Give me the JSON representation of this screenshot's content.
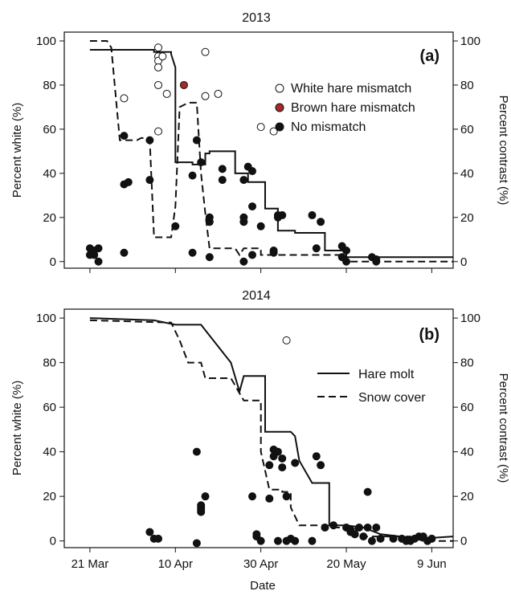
{
  "figure": {
    "xlabel": "Date"
  },
  "x_ticks": [
    {
      "label": "21 Mar",
      "day": 0
    },
    {
      "label": "10 Apr",
      "day": 20
    },
    {
      "label": "30 Apr",
      "day": 40
    },
    {
      "label": "20 May",
      "day": 60
    },
    {
      "label": "9 Jun",
      "day": 80
    }
  ],
  "x_domain_days": [
    -6,
    85
  ],
  "x_date_origin": "21 Mar",
  "colors": {
    "line": "#111111",
    "brown_mismatch": "#a52a2a",
    "white_marker_fill": "#ffffff"
  },
  "chart_data": [
    {
      "type": "line",
      "title": "2013",
      "panel_label": "(a)",
      "ylabel_left": "Percent white (%)",
      "ylabel_right": "Percent contrast (%)",
      "ylim": [
        -3,
        104
      ],
      "y_ticks": [
        0,
        20,
        40,
        60,
        80,
        100
      ],
      "legend": {
        "position": "top-right",
        "entries": [
          {
            "label": "White hare mismatch",
            "marker": "open-circle"
          },
          {
            "label": "Brown hare mismatch",
            "marker": "brown-circle"
          },
          {
            "label": "No mismatch",
            "marker": "filled-circle"
          }
        ]
      },
      "series": [
        {
          "style": "solid",
          "points": [
            [
              0,
              96
            ],
            [
              15,
              96
            ],
            [
              15,
              95
            ],
            [
              19,
              95
            ],
            [
              19,
              94
            ],
            [
              20,
              88
            ],
            [
              20,
              45
            ],
            [
              24,
              45
            ],
            [
              24,
              44
            ],
            [
              27,
              44
            ],
            [
              27,
              49
            ],
            [
              28,
              49
            ],
            [
              28,
              50
            ],
            [
              34,
              50
            ],
            [
              34,
              40
            ],
            [
              37,
              40
            ],
            [
              37,
              36
            ],
            [
              41,
              36
            ],
            [
              41,
              24
            ],
            [
              44,
              24
            ],
            [
              44,
              14
            ],
            [
              48,
              14
            ],
            [
              48,
              13
            ],
            [
              55,
              13
            ],
            [
              55,
              5
            ],
            [
              60,
              5
            ],
            [
              60,
              2
            ],
            [
              85,
              2
            ]
          ]
        },
        {
          "style": "dashed",
          "points": [
            [
              0,
              100
            ],
            [
              4,
              100
            ],
            [
              5,
              97
            ],
            [
              7,
              55
            ],
            [
              11,
              55
            ],
            [
              12,
              56
            ],
            [
              13,
              56
            ],
            [
              14,
              55
            ],
            [
              15,
              11
            ],
            [
              19,
              11
            ],
            [
              20,
              25
            ],
            [
              21,
              70
            ],
            [
              23,
              72
            ],
            [
              25,
              72
            ],
            [
              26,
              40
            ],
            [
              27,
              22
            ],
            [
              28,
              6
            ],
            [
              34,
              6
            ],
            [
              35,
              3
            ],
            [
              36,
              6
            ],
            [
              40,
              6
            ],
            [
              40,
              3
            ],
            [
              60,
              3
            ],
            [
              60,
              0
            ],
            [
              85,
              0
            ]
          ]
        }
      ],
      "points_white_mismatch": [
        [
          8,
          74
        ],
        [
          16,
          97
        ],
        [
          16,
          93
        ],
        [
          16,
          91
        ],
        [
          16,
          88
        ],
        [
          16,
          80
        ],
        [
          16,
          59
        ],
        [
          17,
          93
        ],
        [
          18,
          76
        ],
        [
          27,
          95
        ],
        [
          27,
          75
        ],
        [
          30,
          76
        ],
        [
          40,
          61
        ],
        [
          43,
          59
        ]
      ],
      "points_brown_mismatch": [
        [
          22,
          80
        ]
      ],
      "points_no_mismatch": [
        [
          0,
          3
        ],
        [
          0,
          6
        ],
        [
          1,
          3
        ],
        [
          1,
          5
        ],
        [
          2,
          0
        ],
        [
          2,
          6
        ],
        [
          8,
          57
        ],
        [
          8,
          35
        ],
        [
          8,
          4
        ],
        [
          9,
          36
        ],
        [
          14,
          55
        ],
        [
          14,
          37
        ],
        [
          20,
          16
        ],
        [
          24,
          39
        ],
        [
          24,
          4
        ],
        [
          25,
          55
        ],
        [
          26,
          45
        ],
        [
          28,
          20
        ],
        [
          28,
          18
        ],
        [
          28,
          2
        ],
        [
          31,
          42
        ],
        [
          31,
          37
        ],
        [
          36,
          37
        ],
        [
          36,
          20
        ],
        [
          36,
          18
        ],
        [
          36,
          0
        ],
        [
          37,
          43
        ],
        [
          38,
          41
        ],
        [
          38,
          25
        ],
        [
          38,
          3
        ],
        [
          40,
          16
        ],
        [
          43,
          5
        ],
        [
          43,
          4
        ],
        [
          44,
          21
        ],
        [
          44,
          20
        ],
        [
          45,
          21
        ],
        [
          52,
          21
        ],
        [
          54,
          18
        ],
        [
          53,
          6
        ],
        [
          59,
          7
        ],
        [
          59,
          2
        ],
        [
          60,
          5
        ],
        [
          60,
          0
        ],
        [
          66,
          2
        ],
        [
          67,
          0
        ],
        [
          67,
          1
        ]
      ]
    },
    {
      "type": "line",
      "title": "2014",
      "panel_label": "(b)",
      "ylabel_left": "Percent white (%)",
      "ylabel_right": "Percent contrast (%)",
      "ylim": [
        -3,
        104
      ],
      "y_ticks": [
        0,
        20,
        40,
        60,
        80,
        100
      ],
      "legend": {
        "position": "top-right",
        "entries": [
          {
            "label": "Hare molt",
            "style": "solid"
          },
          {
            "label": "Snow cover",
            "style": "dashed"
          }
        ]
      },
      "series": [
        {
          "style": "solid",
          "points": [
            [
              0,
              100
            ],
            [
              15,
              99
            ],
            [
              20,
              97
            ],
            [
              26,
              97
            ],
            [
              33,
              80
            ],
            [
              35,
              67
            ],
            [
              36,
              74
            ],
            [
              41,
              74
            ],
            [
              41,
              49
            ],
            [
              47,
              49
            ],
            [
              48,
              47
            ],
            [
              49,
              36
            ],
            [
              52,
              26
            ],
            [
              56,
              26
            ],
            [
              56,
              7
            ],
            [
              60,
              7
            ],
            [
              64,
              6
            ],
            [
              68,
              3
            ],
            [
              77,
              1
            ],
            [
              85,
              2
            ]
          ]
        },
        {
          "style": "dashed",
          "points": [
            [
              0,
              99
            ],
            [
              19,
              98
            ],
            [
              21,
              90
            ],
            [
              23,
              80
            ],
            [
              26,
              80
            ],
            [
              27,
              73
            ],
            [
              33,
              73
            ],
            [
              36,
              63
            ],
            [
              40,
              63
            ],
            [
              40,
              40
            ],
            [
              42,
              23
            ],
            [
              45,
              23
            ],
            [
              45,
              22
            ],
            [
              47,
              22
            ],
            [
              47,
              15
            ],
            [
              49,
              7
            ],
            [
              55,
              7
            ],
            [
              58,
              6
            ],
            [
              62,
              6
            ],
            [
              63,
              2
            ],
            [
              75,
              2
            ],
            [
              78,
              0
            ],
            [
              85,
              0
            ]
          ]
        }
      ],
      "points_white_mismatch": [
        [
          46,
          90
        ]
      ],
      "points_no_mismatch": [
        [
          14,
          4
        ],
        [
          15,
          1
        ],
        [
          16,
          1
        ],
        [
          25,
          40
        ],
        [
          25,
          -1
        ],
        [
          26,
          14
        ],
        [
          26,
          15
        ],
        [
          26,
          13
        ],
        [
          26,
          16
        ],
        [
          27,
          20
        ],
        [
          38,
          20
        ],
        [
          39,
          2
        ],
        [
          39,
          3
        ],
        [
          40,
          0
        ],
        [
          42,
          19
        ],
        [
          42,
          34
        ],
        [
          43,
          41
        ],
        [
          43,
          38
        ],
        [
          44,
          40
        ],
        [
          44,
          0
        ],
        [
          45,
          37
        ],
        [
          45,
          33
        ],
        [
          46,
          20
        ],
        [
          46,
          0
        ],
        [
          47,
          1
        ],
        [
          48,
          35
        ],
        [
          48,
          0
        ],
        [
          52,
          0
        ],
        [
          53,
          38
        ],
        [
          54,
          34
        ],
        [
          55,
          6
        ],
        [
          57,
          7
        ],
        [
          60,
          6
        ],
        [
          61,
          5
        ],
        [
          61,
          4
        ],
        [
          62,
          3
        ],
        [
          63,
          6
        ],
        [
          64,
          2
        ],
        [
          65,
          22
        ],
        [
          65,
          6
        ],
        [
          66,
          0
        ],
        [
          67,
          6
        ],
        [
          68,
          1
        ],
        [
          71,
          1
        ],
        [
          73,
          1
        ],
        [
          74,
          0
        ],
        [
          75,
          0
        ],
        [
          76,
          1
        ],
        [
          77,
          2
        ],
        [
          78,
          2
        ],
        [
          79,
          0
        ],
        [
          80,
          1
        ]
      ]
    }
  ]
}
